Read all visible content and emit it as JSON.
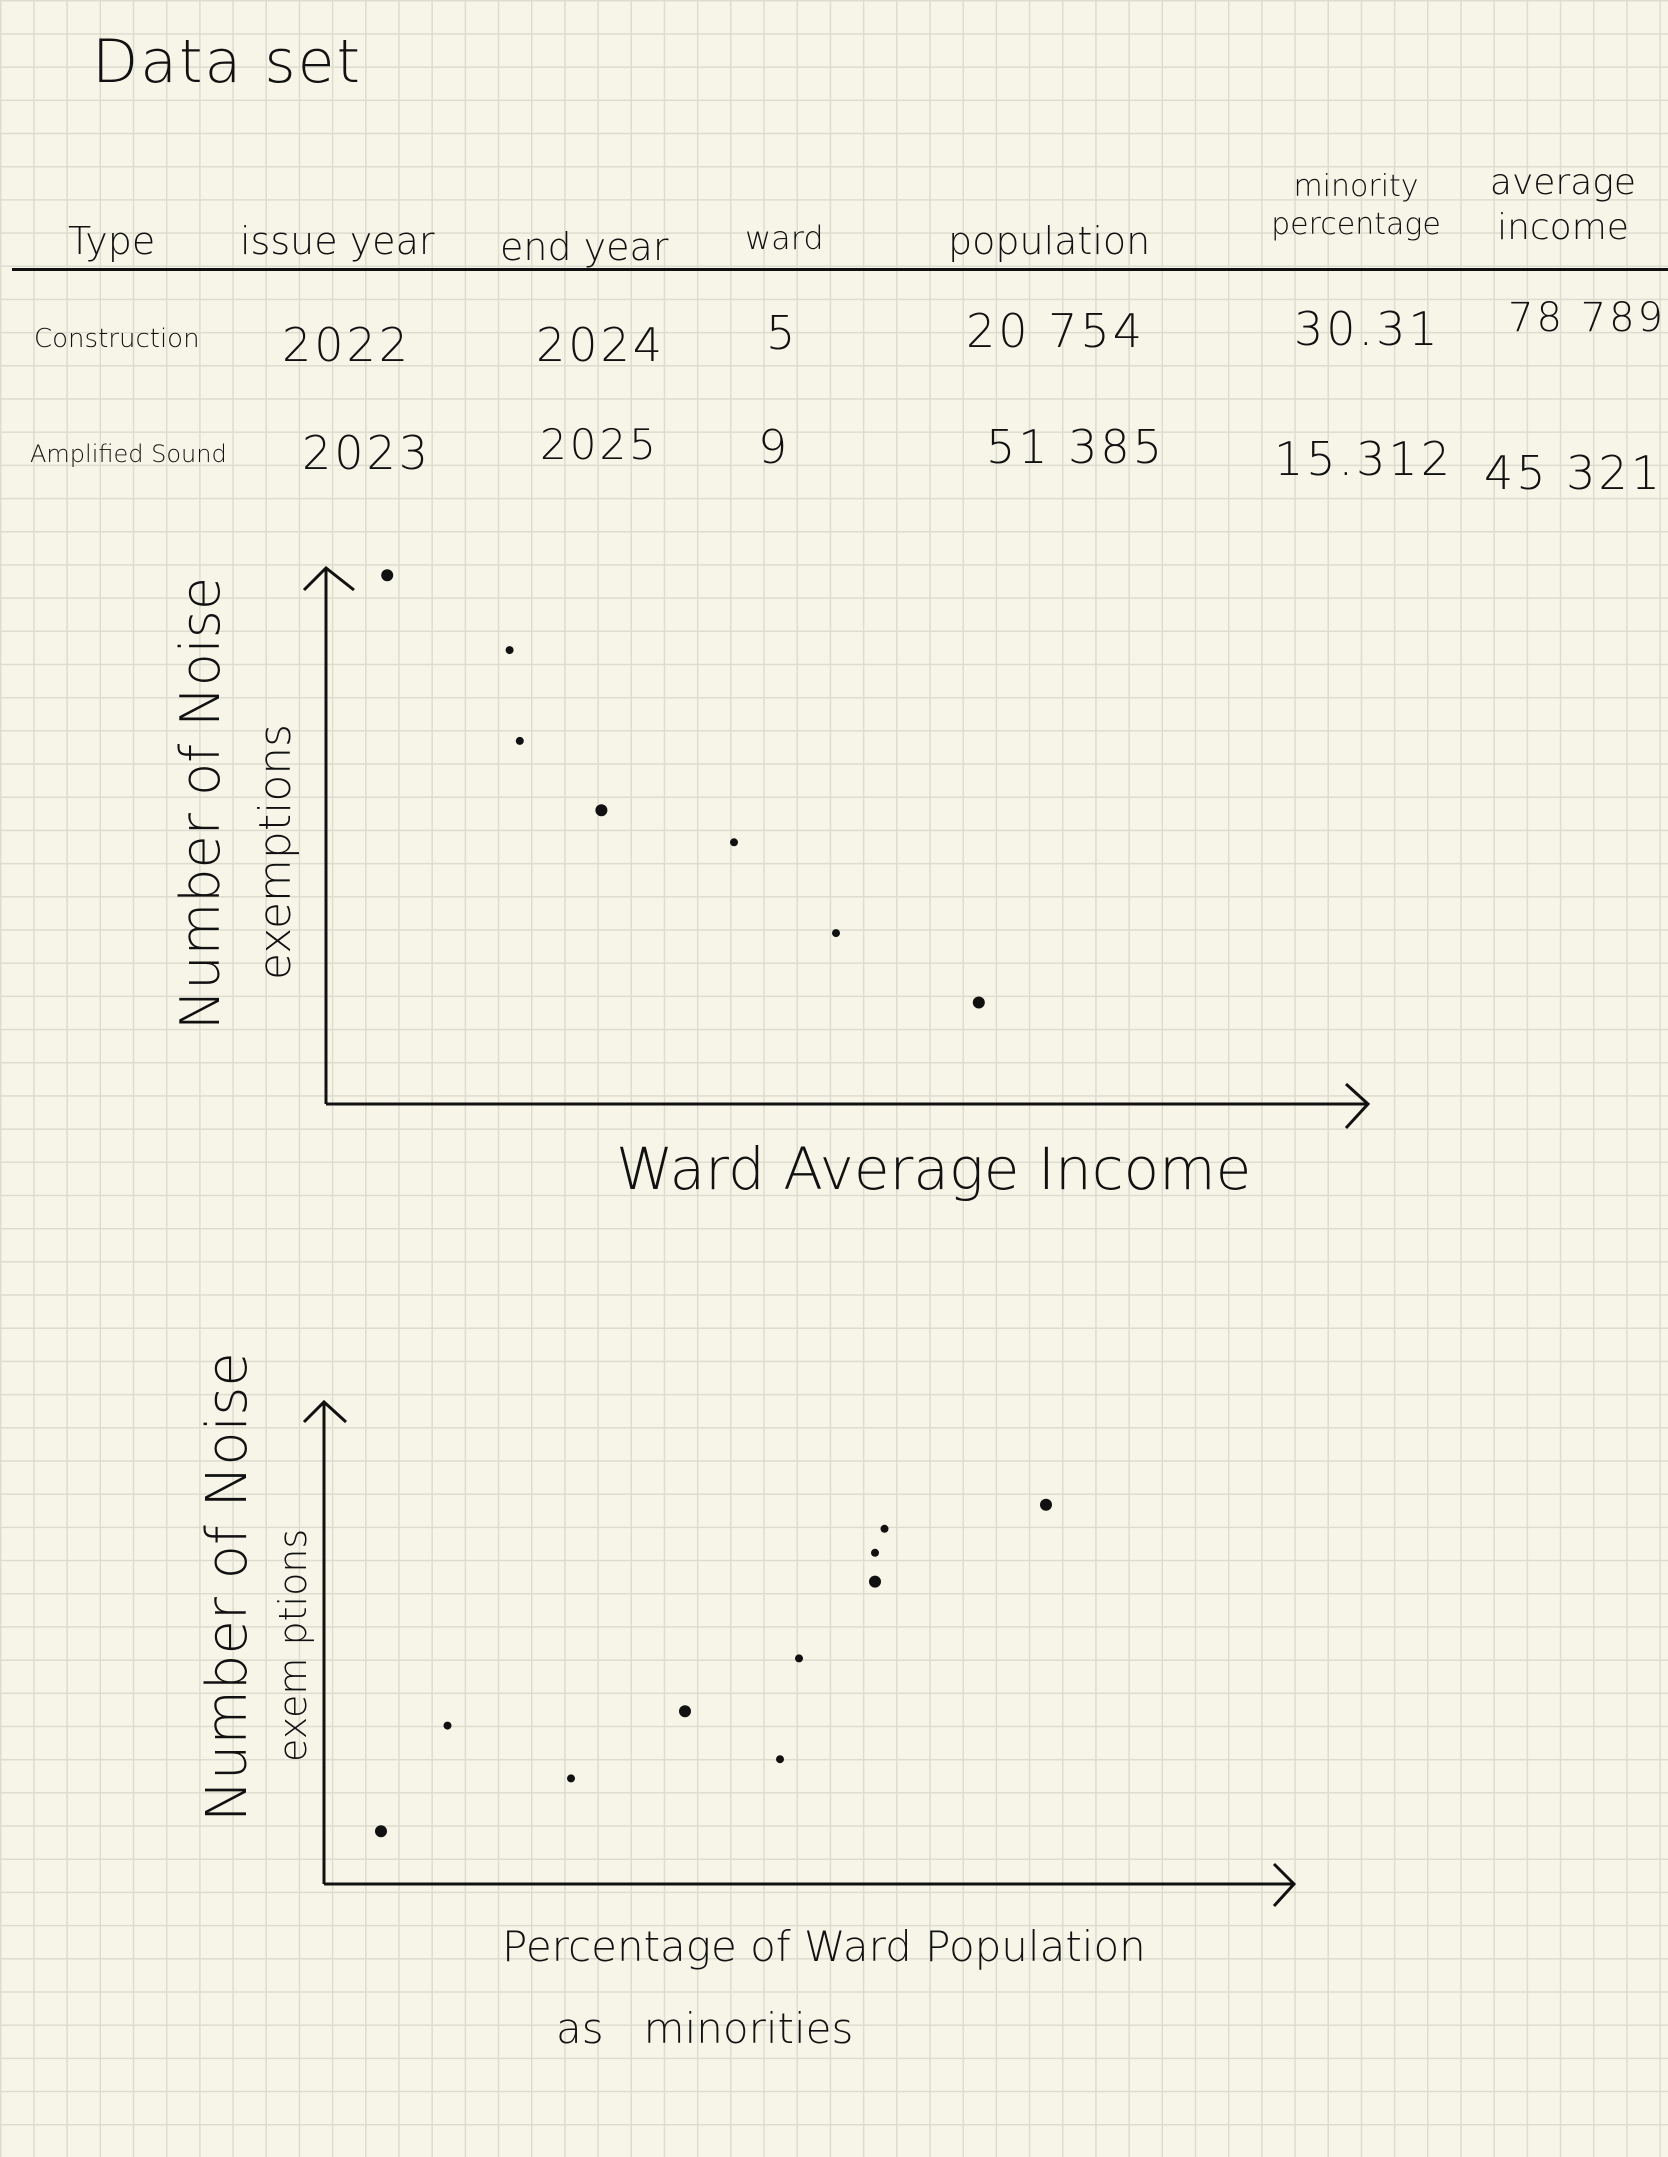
{
  "page": {
    "title": "Data set"
  },
  "table": {
    "headers": {
      "type": "Type",
      "issue_year": "issue year",
      "end_year": "end year",
      "ward": "ward",
      "population": "population",
      "minority_line1": "minority",
      "minority_line2": "percentage",
      "income_line1": "average",
      "income_line2": "income"
    },
    "rows": [
      {
        "type": "Construction",
        "issue_year": "2022",
        "end_year": "2024",
        "ward": "5",
        "population": "20 754",
        "minority_percentage": "30.31",
        "average_income": "78 789"
      },
      {
        "type": "Amplified Sound",
        "issue_year": "2023",
        "end_year": "2025",
        "ward": "9",
        "population": "51 385",
        "minority_percentage": "15.312",
        "average_income": "45 321"
      }
    ]
  },
  "chart_data": [
    {
      "type": "scatter",
      "title": "",
      "xlabel": "Ward Average Income",
      "ylabel_line1": "Number of Noise",
      "ylabel_line2": "exemptions",
      "x_ticks": "none",
      "y_ticks": "none",
      "grid": false,
      "xlim": [
        0,
        10
      ],
      "ylim": [
        0,
        10
      ],
      "points": [
        {
          "x": 0.6,
          "y": 9.9
        },
        {
          "x": 1.8,
          "y": 8.5
        },
        {
          "x": 1.9,
          "y": 6.8
        },
        {
          "x": 2.7,
          "y": 5.5
        },
        {
          "x": 4.0,
          "y": 4.9
        },
        {
          "x": 5.0,
          "y": 3.2
        },
        {
          "x": 6.4,
          "y": 1.9
        }
      ]
    },
    {
      "type": "scatter",
      "title": "",
      "xlabel_line1": "Percentage of Ward Population",
      "xlabel_line2": "as   minorities",
      "ylabel_line1": "Number of Noise",
      "ylabel_line2": "exem ptions",
      "x_ticks": "none",
      "y_ticks": "none",
      "grid": false,
      "xlim": [
        0,
        10
      ],
      "ylim": [
        0,
        10
      ],
      "points": [
        {
          "x": 0.6,
          "y": 1.1
        },
        {
          "x": 1.3,
          "y": 3.3
        },
        {
          "x": 2.6,
          "y": 2.2
        },
        {
          "x": 3.8,
          "y": 3.6
        },
        {
          "x": 4.8,
          "y": 2.6
        },
        {
          "x": 5.0,
          "y": 4.7
        },
        {
          "x": 5.8,
          "y": 6.3
        },
        {
          "x": 5.8,
          "y": 6.9
        },
        {
          "x": 5.9,
          "y": 7.4
        },
        {
          "x": 7.6,
          "y": 7.9
        }
      ]
    }
  ]
}
